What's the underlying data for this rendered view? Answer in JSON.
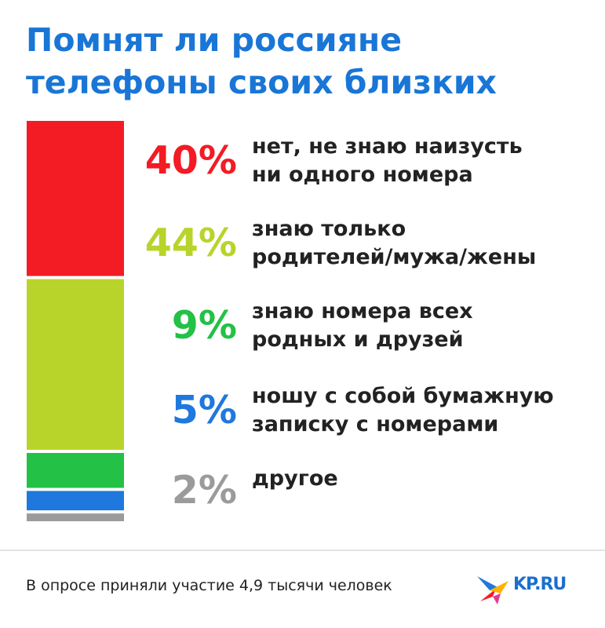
{
  "title": [
    "Помнят ли россияне",
    "телефоны своих близких"
  ],
  "chart_data": {
    "type": "bar",
    "categories": [
      "нет, не знаю наизусть ни одного номера",
      "знаю только родителей/мужа/жены",
      "знаю номера всех родных и друзей",
      "ношу с собой бумажную записку с номерами",
      "другое"
    ],
    "values": [
      40,
      44,
      9,
      5,
      2
    ],
    "unit": "%",
    "stacked": true,
    "colors": [
      "#f31b24",
      "#b8d42b",
      "#23c146",
      "#1f78de",
      "#9b9b9b"
    ]
  },
  "items": [
    {
      "percent": "40%",
      "lines": [
        "нет, не знаю наизусть",
        "ни одного номера"
      ],
      "color": "#f31b24"
    },
    {
      "percent": "44%",
      "lines": [
        "знаю только",
        "родителей/мужа/жены"
      ],
      "color": "#b8d42b"
    },
    {
      "percent": "9%",
      "lines": [
        "знаю номера всех",
        "родных и друзей"
      ],
      "color": "#23c146"
    },
    {
      "percent": "5%",
      "lines": [
        "ношу с собой бумажную",
        "записку с номерами"
      ],
      "color": "#1f78de"
    },
    {
      "percent": "2%",
      "lines": [
        "другое"
      ],
      "color": "#9b9b9b"
    }
  ],
  "footer": "В опросе приняли участие 4,9 тысячи человек",
  "logo": {
    "text": "KP.RU",
    "icon": "bird-logo-icon"
  }
}
